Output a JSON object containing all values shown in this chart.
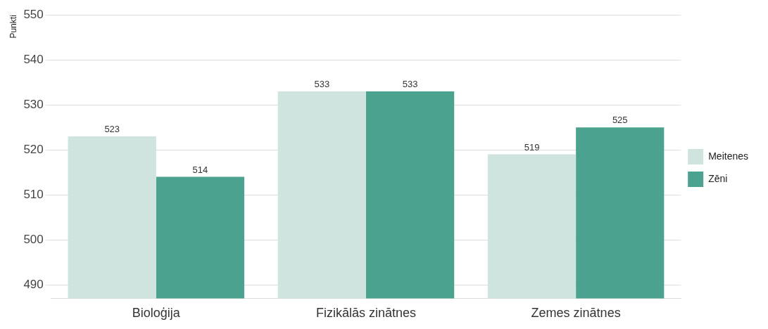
{
  "chart_data": {
    "type": "bar",
    "categories": [
      "Bioloģija",
      "Fizikālās zinātnes",
      "Zemes zinātnes"
    ],
    "series": [
      {
        "name": "Meitenes",
        "color": "#cfe3df",
        "values": [
          523,
          533,
          519
        ]
      },
      {
        "name": "Zēni",
        "color": "#4ba38f",
        "values": [
          514,
          533,
          525
        ]
      }
    ],
    "ylabel": "Punkti",
    "ylim": [
      487,
      550
    ],
    "yticks": [
      490,
      500,
      510,
      520,
      530,
      540,
      550
    ],
    "grid": "y",
    "legend": "right",
    "data_labels": true
  }
}
